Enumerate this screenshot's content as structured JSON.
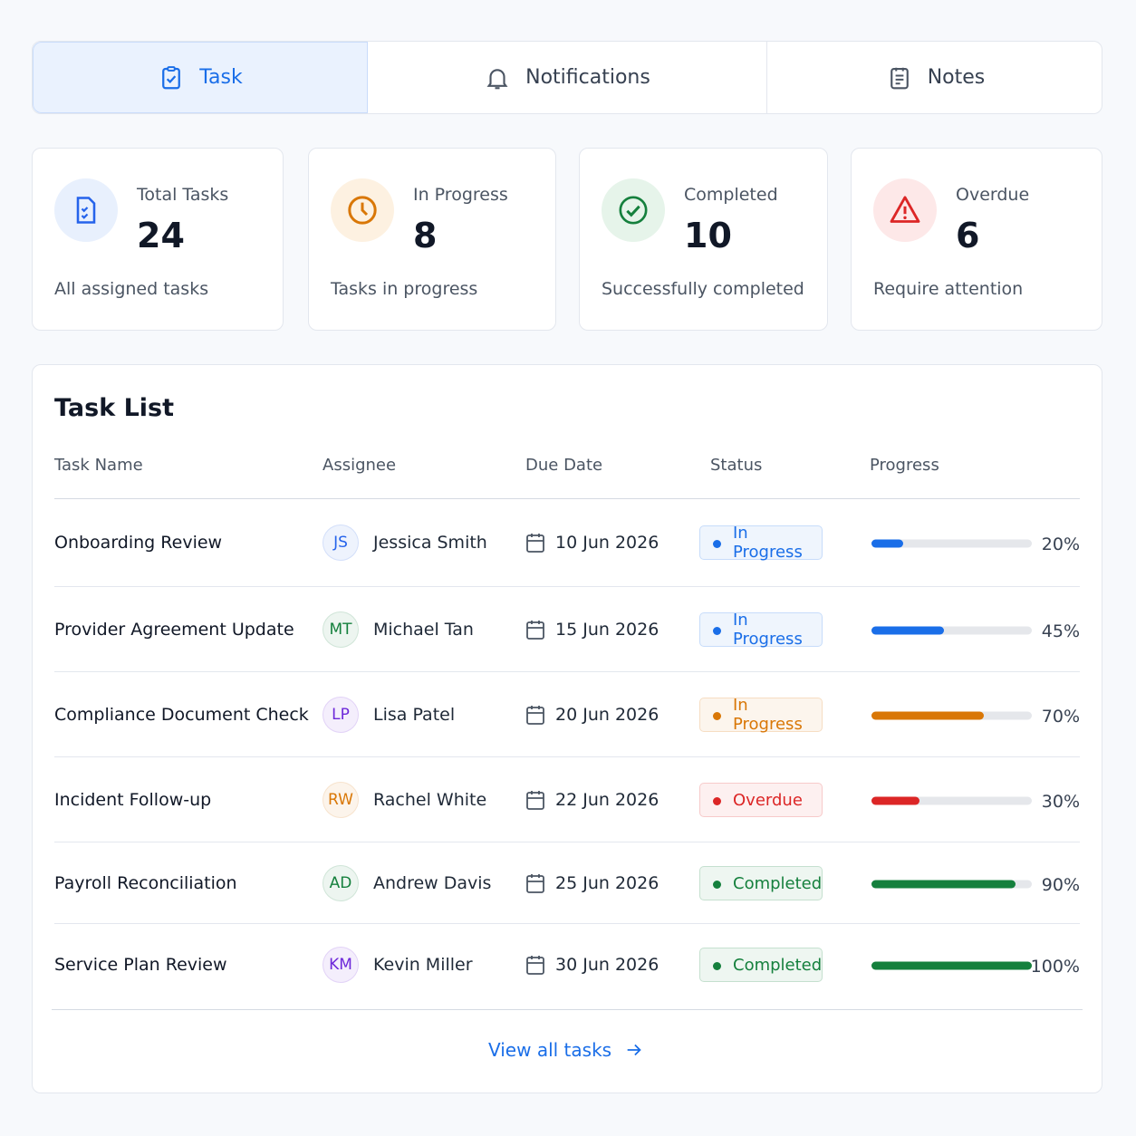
{
  "active_tab": 0,
  "tabs": [
    "Task",
    "Notifications",
    "Notes"
  ],
  "stats": [
    {
      "title": "Total Tasks",
      "value": 24,
      "caption": "All assigned tasks",
      "color": "#2563eb",
      "bg": "#e8f0fd"
    },
    {
      "title": "In Progress",
      "value": 8,
      "caption": "Tasks in progress",
      "color": "#d97706",
      "bg": "#fdf1e1"
    },
    {
      "title": "Completed",
      "value": 10,
      "caption": "Successfully completed",
      "color": "#15803d",
      "bg": "#e6f4ea"
    },
    {
      "title": "Overdue",
      "value": 6,
      "caption": "Require attention",
      "color": "#dc2626",
      "bg": "#fde8e8"
    }
  ],
  "task_list": {
    "title": "Task List",
    "columns": [
      "Task Name",
      "Assignee",
      "Due Date",
      "Status",
      "Progress"
    ],
    "rows": [
      {
        "name": "Onboarding Review",
        "initials": "JS",
        "assignee": "Jessica Smith",
        "avatar_color": "#2563eb",
        "due": "10 Jun 2026",
        "status": "In Progress",
        "color": "#1a6ee8",
        "progress": {
          "value": 20,
          "label": "20%"
        }
      },
      {
        "name": "Provider Agreement Update",
        "initials": "MT",
        "assignee": "Michael Tan",
        "avatar_color": "#15803d",
        "due": "15 Jun 2026",
        "status": "In Progress",
        "color": "#1a6ee8",
        "progress": {
          "value": 45,
          "label": "45%"
        }
      },
      {
        "name": "Compliance Document Check",
        "initials": "LP",
        "assignee": "Lisa Patel",
        "avatar_color": "#6d28d9",
        "due": "20 Jun 2026",
        "status": "In Progress",
        "color": "#d97706",
        "progress": {
          "value": 70,
          "label": "70%"
        }
      },
      {
        "name": "Incident Follow-up",
        "initials": "RW",
        "assignee": "Rachel White",
        "avatar_color": "#d97706",
        "due": "22 Jun 2026",
        "status": "Overdue",
        "color": "#dc2626",
        "progress": {
          "value": 30,
          "label": "30%"
        }
      },
      {
        "name": "Payroll Reconciliation",
        "initials": "AD",
        "assignee": "Andrew Davis",
        "avatar_color": "#15803d",
        "due": "25 Jun 2026",
        "status": "Completed",
        "color": "#15803d",
        "progress": {
          "value": 90,
          "label": "90%"
        }
      },
      {
        "name": "Service Plan Review",
        "initials": "KM",
        "assignee": "Kevin Miller",
        "avatar_color": "#6d28d9",
        "due": "30 Jun 2026",
        "status": "Completed",
        "color": "#15803d",
        "progress": {
          "value": 100,
          "label": "100%"
        }
      }
    ],
    "footer": "View all tasks"
  }
}
